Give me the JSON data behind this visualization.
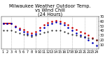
{
  "title": "Milwaukee Weather Outdoor Temp.\nvs Wind Chill\n(24 Hours)",
  "hours": [
    1,
    2,
    3,
    4,
    5,
    6,
    7,
    8,
    9,
    10,
    11,
    12,
    13,
    14,
    15,
    16,
    17,
    18,
    19,
    20,
    21,
    22,
    23,
    24
  ],
  "temp": [
    55,
    55,
    55,
    50,
    45,
    42,
    38,
    35,
    38,
    46,
    52,
    57,
    60,
    62,
    60,
    57,
    52,
    47,
    42,
    38,
    35,
    30,
    25,
    20
  ],
  "wind_chill": [
    55,
    55,
    55,
    48,
    42,
    38,
    33,
    30,
    33,
    40,
    46,
    52,
    56,
    58,
    56,
    53,
    47,
    41,
    35,
    30,
    26,
    20,
    14,
    8
  ],
  "dew_point": [
    40,
    40,
    40,
    38,
    35,
    32,
    30,
    28,
    30,
    34,
    36,
    38,
    40,
    41,
    40,
    38,
    35,
    32,
    30,
    28,
    27,
    25,
    23,
    20
  ],
  "ylim": [
    0,
    70
  ],
  "ytick_vals": [
    10,
    20,
    30,
    40,
    50,
    60,
    70
  ],
  "ytick_labels": [
    "10",
    "20",
    "30",
    "40",
    "50",
    "60",
    "70"
  ],
  "vgrid_hours": [
    3,
    6,
    9,
    12,
    15,
    18,
    21,
    24
  ],
  "temp_color": "#cc0000",
  "wind_chill_color": "#0000bb",
  "dew_color": "#222222",
  "grid_color": "#999999",
  "bg_color": "#ffffff",
  "title_fontsize": 4.8,
  "tick_fontsize": 3.5
}
